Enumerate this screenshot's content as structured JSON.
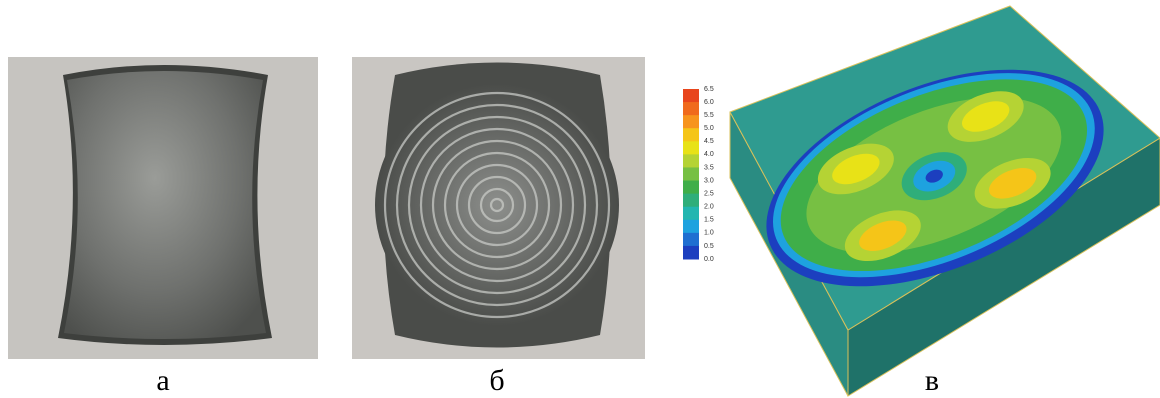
{
  "captions": [
    "а",
    "б",
    "в"
  ],
  "legend": {
    "ticks": [
      "6.5",
      "6.0",
      "5.5",
      "5.0",
      "4.5",
      "4.0",
      "3.5",
      "3.0",
      "2.5",
      "2.0",
      "1.5",
      "1.0",
      "0.5",
      "0.0"
    ],
    "colors": [
      "#e8451c",
      "#f06a1c",
      "#f7941d",
      "#f5c518",
      "#e8e217",
      "#b5d334",
      "#77c043",
      "#3fae49",
      "#2fae7a",
      "#23b6b0",
      "#1ea2df",
      "#1f6fd1",
      "#1c3fbf"
    ]
  }
}
